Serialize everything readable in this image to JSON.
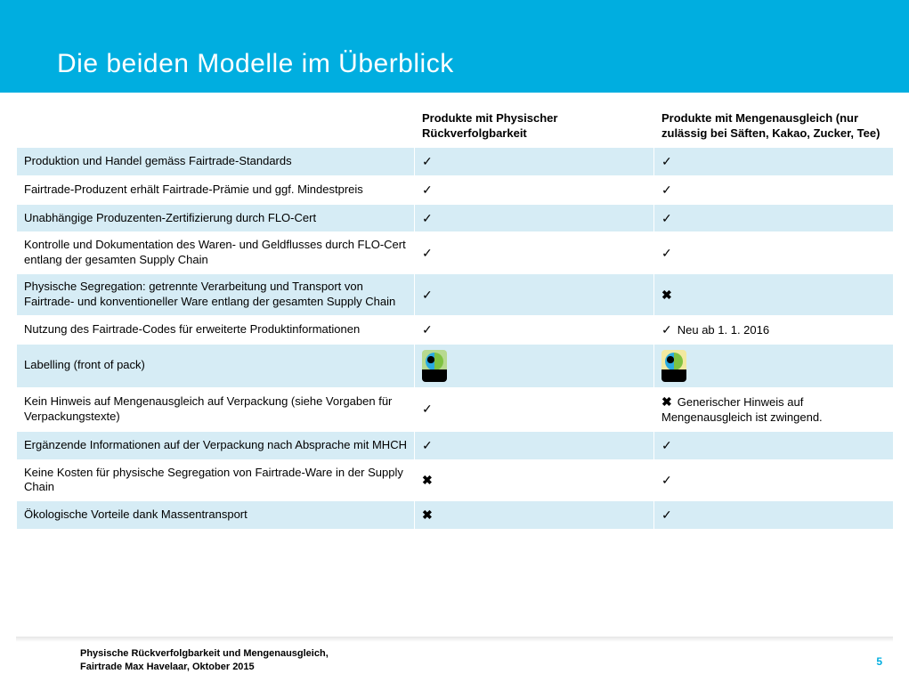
{
  "title": "Die beiden Modelle im Überblick",
  "columns": {
    "blank": "",
    "col1": "Produkte mit Physischer Rückverfolgbarkeit",
    "col2": "Produkte mit Mengenausgleich (nur zulässig bei Säften, Kakao, Zucker, Tee)"
  },
  "rows": [
    {
      "label": "Produktion und Handel gemäss Fairtrade-Standards",
      "c1": "check",
      "c1_extra": "",
      "c2": "check",
      "c2_extra": "",
      "band": true
    },
    {
      "label": "Fairtrade-Produzent erhält Fairtrade-Prämie und ggf. Mindestpreis",
      "c1": "check",
      "c1_extra": "",
      "c2": "check",
      "c2_extra": "",
      "band": false
    },
    {
      "label": "Unabhängige Produzenten-Zertifizierung durch FLO-Cert",
      "c1": "check",
      "c1_extra": "",
      "c2": "check",
      "c2_extra": "",
      "band": true
    },
    {
      "label": "Kontrolle und Dokumentation des Waren- und Geldflusses durch FLO-Cert entlang der gesamten Supply Chain",
      "c1": "check",
      "c1_extra": "",
      "c2": "check",
      "c2_extra": "",
      "band": false
    },
    {
      "label": "Physische Segregation: getrennte Verarbeitung und Transport von Fairtrade- und konventioneller Ware entlang der gesamten Supply Chain",
      "c1": "check",
      "c1_extra": "",
      "c2": "cross",
      "c2_extra": "",
      "band": true
    },
    {
      "label": "Nutzung des Fairtrade-Codes für erweiterte Produktinformationen",
      "c1": "check",
      "c1_extra": "",
      "c2": "check",
      "c2_extra": "Neu ab 1. 1. 2016",
      "band": false
    },
    {
      "label": "Labelling (front of pack)",
      "c1": "logo1",
      "c1_extra": "",
      "c2": "logo2",
      "c2_extra": "",
      "band": true
    },
    {
      "label": "Kein Hinweis auf Mengenausgleich auf Verpackung (siehe Vorgaben für Verpackungstexte)",
      "c1": "check",
      "c1_extra": "",
      "c2": "cross",
      "c2_extra": "Generischer Hinweis auf Mengenausgleich ist zwingend.",
      "band": false
    },
    {
      "label": "Ergänzende Informationen auf der Verpackung nach Absprache mit MHCH",
      "c1": "check",
      "c1_extra": "",
      "c2": "check",
      "c2_extra": "",
      "band": true
    },
    {
      "label": "Keine Kosten für physische Segregation von Fairtrade-Ware in der Supply Chain",
      "c1": "cross",
      "c1_extra": "",
      "c2": "check",
      "c2_extra": "",
      "band": false
    },
    {
      "label": "Ökologische Vorteile dank Massentransport",
      "c1": "cross",
      "c1_extra": "",
      "c2": "check",
      "c2_extra": "",
      "band": true
    }
  ],
  "footer": {
    "line1": "Physische Rückverfolgbarkeit und Mengenausgleich,",
    "line2": "Fairtrade Max Havelaar, Oktober 2015"
  },
  "page_number": "5",
  "colors": {
    "hero": "#00aee0",
    "band": "#d6ecf5",
    "page_num": "#00aee0"
  }
}
